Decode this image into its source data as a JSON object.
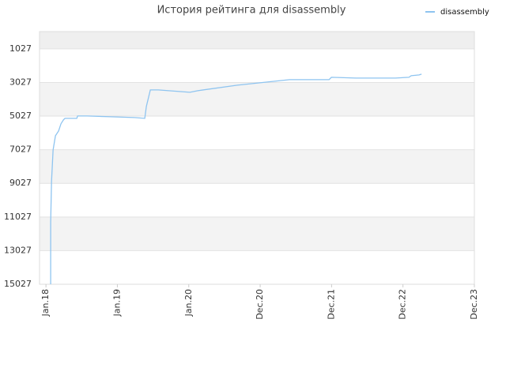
{
  "chart_data": {
    "type": "line",
    "title": "История рейтинга для disassembly",
    "x": [
      0.066,
      0.066,
      0.078,
      0.1,
      0.133,
      0.177,
      0.21,
      0.244,
      0.266,
      0.432,
      0.443,
      0.576,
      0.908,
      1.24,
      1.384,
      1.406,
      1.462,
      1.573,
      2.016,
      2.126,
      2.68,
      3.411,
      3.965,
      3.998,
      4.341,
      4.895,
      5.083,
      5.116,
      5.227,
      5.26
    ],
    "series": [
      {
        "name": "disassembly",
        "color": "#8ec4f0",
        "values": [
          15027,
          11356,
          8915,
          7037,
          6192,
          5910,
          5487,
          5253,
          5159,
          5159,
          5018,
          5018,
          5065,
          5112,
          5159,
          4454,
          3468,
          3468,
          3609,
          3515,
          3187,
          2858,
          2858,
          2717,
          2764,
          2764,
          2717,
          2623,
          2576,
          2529
        ]
      }
    ],
    "xlim": [
      -0.09,
      6
    ],
    "xticks": [
      {
        "value": 0,
        "label": "Jan.18"
      },
      {
        "value": 1,
        "label": "Jan.19"
      },
      {
        "value": 2,
        "label": "Jan.20"
      },
      {
        "value": 3,
        "label": "Dec.20"
      },
      {
        "value": 4,
        "label": "Dec.21"
      },
      {
        "value": 5,
        "label": "Dec.22"
      },
      {
        "value": 6,
        "label": "Dec.23"
      }
    ],
    "ylim": [
      15027,
      0
    ],
    "yticks": [
      1027,
      3027,
      5027,
      7027,
      9027,
      11027,
      13027,
      15027
    ],
    "grid": true,
    "legend": "top-right"
  }
}
